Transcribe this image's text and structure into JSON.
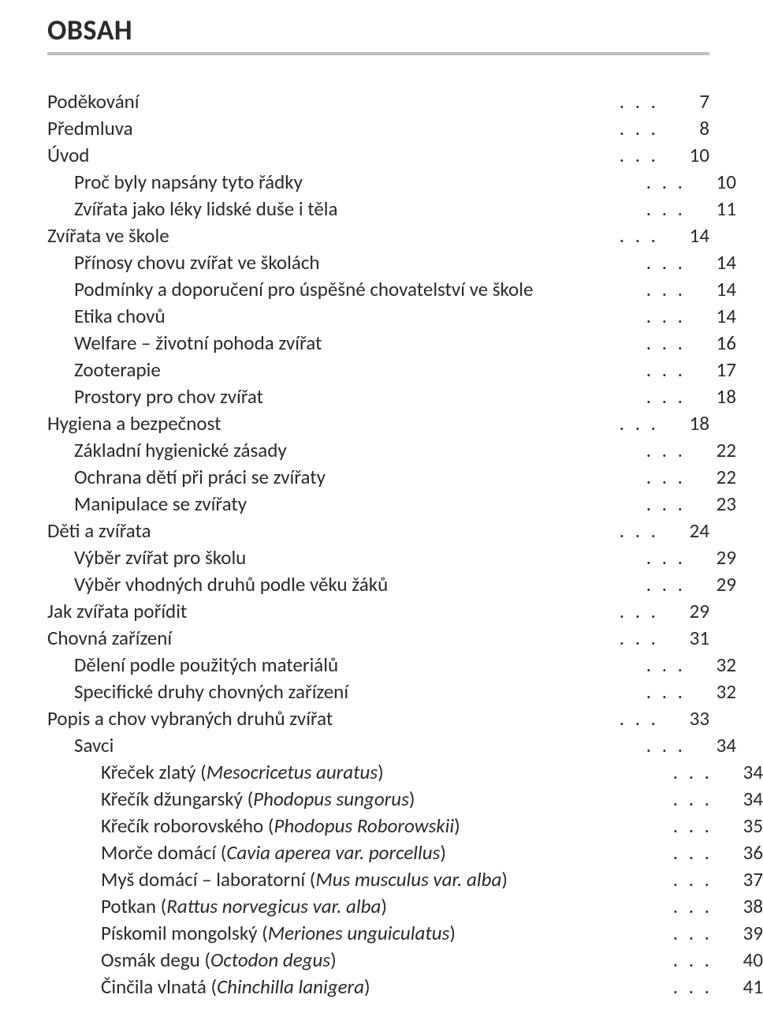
{
  "title": "OBSAH",
  "typography": {
    "body_fontsize_pt": 19,
    "title_fontsize_pt": 27,
    "font_family": "Calibri",
    "text_color": "#2a2a2a",
    "rule_color": "#bfbfbf",
    "background_color": "#ffffff"
  },
  "dots": ". . .",
  "toc": [
    {
      "label": "Poděkování",
      "page": "7",
      "indent": 0
    },
    {
      "label": "Předmluva",
      "page": "8",
      "indent": 0
    },
    {
      "label": "Úvod",
      "page": "10",
      "indent": 0
    },
    {
      "label": "Proč byly napsány tyto řádky",
      "page": "10",
      "indent": 1
    },
    {
      "label": "Zvířata jako léky lidské duše i těla",
      "page": "11",
      "indent": 1
    },
    {
      "label": "Zvířata ve škole",
      "page": "14",
      "indent": 0
    },
    {
      "label": "Přínosy chovu zvířat ve školách",
      "page": "14",
      "indent": 1
    },
    {
      "label": "Podmínky a doporučení pro úspěšné chovatelství ve škole",
      "page": "14",
      "indent": 1
    },
    {
      "label": "Etika chovů",
      "page": "14",
      "indent": 1
    },
    {
      "label": "Welfare – životní pohoda zvířat",
      "page": "16",
      "indent": 1
    },
    {
      "label": "Zooterapie",
      "page": "17",
      "indent": 1
    },
    {
      "label": "Prostory pro chov zvířat",
      "page": "18",
      "indent": 1
    },
    {
      "label": "Hygiena a bezpečnost",
      "page": "18",
      "indent": 0
    },
    {
      "label": "Základní hygienické zásady",
      "page": "22",
      "indent": 1
    },
    {
      "label": "Ochrana dětí při práci se zvířaty",
      "page": "22",
      "indent": 1
    },
    {
      "label": "Manipulace se zvířaty",
      "page": "23",
      "indent": 1
    },
    {
      "label": "Děti a zvířata",
      "page": "24",
      "indent": 0
    },
    {
      "label": "Výběr zvířat pro školu",
      "page": "29",
      "indent": 1
    },
    {
      "label": "Výběr vhodných druhů podle věku žáků",
      "page": "29",
      "indent": 1
    },
    {
      "label": "Jak zvířata pořídit",
      "page": "29",
      "indent": 0
    },
    {
      "label": "Chovná zařízení",
      "page": "31",
      "indent": 0
    },
    {
      "label": "Dělení podle použitých materiálů",
      "page": "32",
      "indent": 1
    },
    {
      "label": "Specifické druhy chovných zařízení",
      "page": "32",
      "indent": 1
    },
    {
      "label": "Popis a chov vybraných druhů zvířat",
      "page": "33",
      "indent": 0
    },
    {
      "label": "Savci",
      "page": "34",
      "indent": 1
    },
    {
      "label": "Křeček zlatý (",
      "italic": "Mesocricetus auratus",
      "label_after": ")",
      "page": "34",
      "indent": 2
    },
    {
      "label": "Křečík džungarský (",
      "italic": "Phodopus sungorus",
      "label_after": ")",
      "page": "34",
      "indent": 2
    },
    {
      "label": "Křečík roborovského (",
      "italic": "Phodopus Roborowskii",
      "label_after": ")",
      "page": "35",
      "indent": 2
    },
    {
      "label": "Morče domácí (",
      "italic": "Cavia aperea var. porcellus",
      "label_after": ")",
      "page": "36",
      "indent": 2
    },
    {
      "label": "Myš domácí – laboratorní (",
      "italic": "Mus musculus var. alba",
      "label_after": ")",
      "page": "37",
      "indent": 2
    },
    {
      "label": "Potkan (",
      "italic": "Rattus norvegicus var. alba",
      "label_after": ")",
      "page": "38",
      "indent": 2
    },
    {
      "label": "Pískomil mongolský (",
      "italic": "Meriones unguiculatus",
      "label_after": ")",
      "page": "39",
      "indent": 2
    },
    {
      "label": "Osmák degu (",
      "italic": "Octodon degus",
      "label_after": ")",
      "page": "40",
      "indent": 2
    },
    {
      "label": "Činčila vlnatá (",
      "italic": "Chinchilla lanigera",
      "label_after": ")",
      "page": "41",
      "indent": 2
    }
  ]
}
